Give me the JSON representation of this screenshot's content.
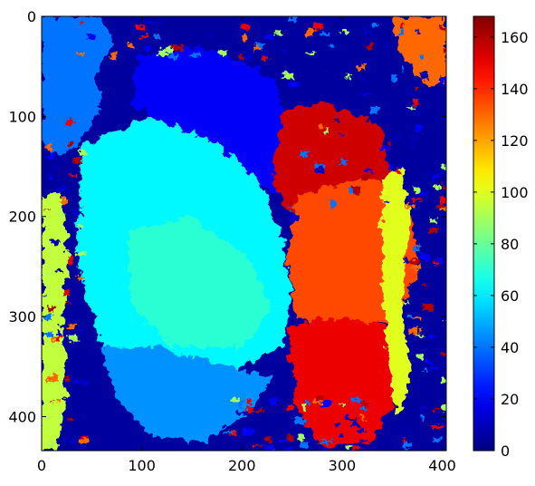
{
  "chart_data": {
    "type": "heatmap",
    "title": "",
    "xlabel": "",
    "ylabel": "",
    "colormap": "jet",
    "xlim": [
      0,
      404
    ],
    "ylim": [
      434,
      0
    ],
    "x_ticks": [
      0,
      100,
      200,
      300,
      400
    ],
    "y_ticks": [
      0,
      100,
      200,
      300,
      400
    ],
    "value_range": [
      0,
      168
    ],
    "colorbar_ticks": [
      0,
      20,
      40,
      60,
      80,
      100,
      120,
      140,
      160
    ],
    "regions": [
      {
        "label": "background",
        "approx_value": 5
      },
      {
        "label": "upper-left",
        "approx_value": 40
      },
      {
        "label": "upper-central",
        "approx_value": 20
      },
      {
        "label": "left-central",
        "approx_value": 62
      },
      {
        "label": "central",
        "approx_value": 70
      },
      {
        "label": "lower-left",
        "approx_value": 45
      },
      {
        "label": "right-upper",
        "approx_value": 155
      },
      {
        "label": "right-central",
        "approx_value": 135
      },
      {
        "label": "right-lower",
        "approx_value": 150
      },
      {
        "label": "right-edge",
        "approx_value": 100
      },
      {
        "label": "top-right-corner",
        "approx_value": 130
      },
      {
        "label": "left-edge",
        "approx_value": 95
      }
    ],
    "grid": false,
    "legend": "colorbar-right"
  }
}
